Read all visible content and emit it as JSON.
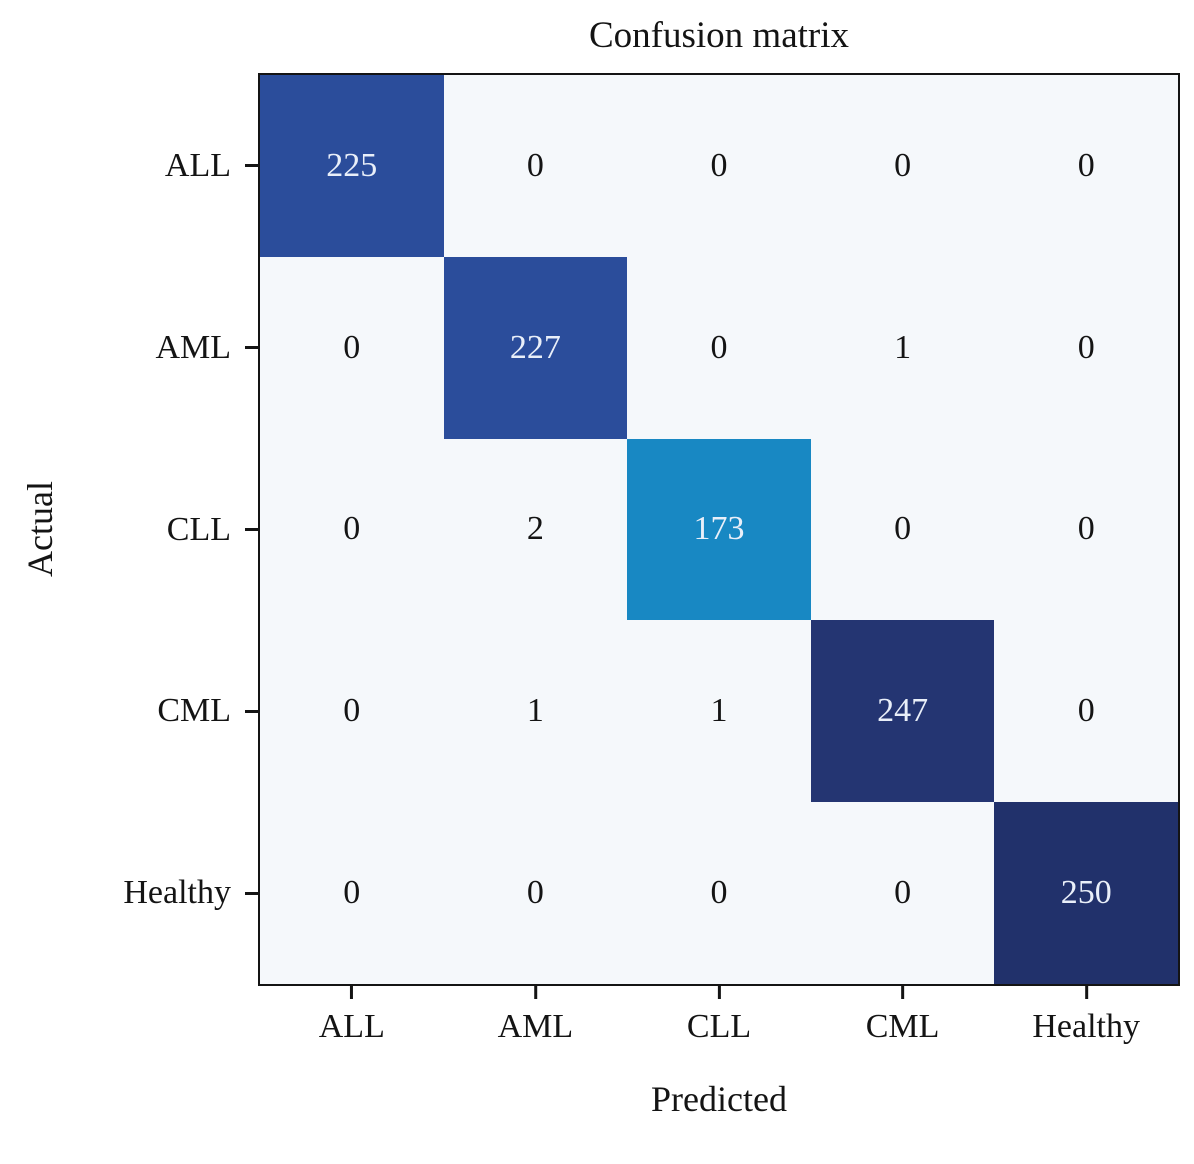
{
  "figure": {
    "title": "Confusion matrix",
    "xlabel": "Predicted",
    "ylabel": "Actual"
  },
  "chart_data": {
    "type": "heatmap",
    "title": "Confusion matrix",
    "xlabel": "Predicted",
    "ylabel": "Actual",
    "x_categories": [
      "ALL",
      "AML",
      "CLL",
      "CML",
      "Healthy"
    ],
    "y_categories": [
      "ALL",
      "AML",
      "CLL",
      "CML",
      "Healthy"
    ],
    "matrix": [
      [
        225,
        0,
        0,
        0,
        0
      ],
      [
        0,
        227,
        0,
        1,
        0
      ],
      [
        0,
        2,
        173,
        0,
        0
      ],
      [
        0,
        1,
        1,
        247,
        0
      ],
      [
        0,
        0,
        0,
        0,
        250
      ]
    ],
    "value_range": [
      0,
      250
    ],
    "legend": "none",
    "grid": false,
    "colors": {
      "diagonal_cells": [
        "#2b4d9b",
        "#2b4d9b",
        "#1888c3",
        "#243572",
        "#21316b"
      ],
      "off_diagonal_cell": "#f5f8fb",
      "diagonal_text": "#e9eff9",
      "off_diagonal_text": "#141414",
      "plot_border": "#141414",
      "tick": "#141414",
      "background": "#ffffff"
    }
  }
}
